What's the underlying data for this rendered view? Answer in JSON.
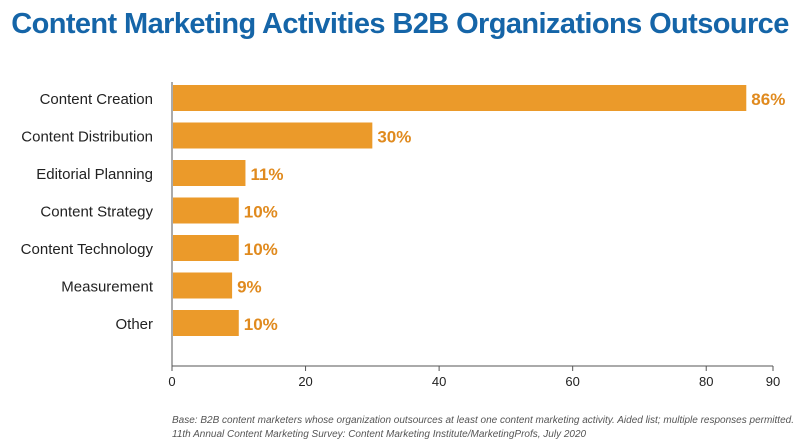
{
  "colors": {
    "title": "#1565a8",
    "bar": "#eb9a2a",
    "value_label": "#e08a1e",
    "axis": "#555555",
    "text": "#222222"
  },
  "chart_data": {
    "type": "bar",
    "orientation": "horizontal",
    "title": "Content Marketing Activities B2B Organizations Outsource",
    "categories": [
      "Content Creation",
      "Content Distribution",
      "Editorial Planning",
      "Content Strategy",
      "Content Technology",
      "Measurement",
      "Other"
    ],
    "values": [
      86,
      30,
      11,
      10,
      10,
      9,
      10
    ],
    "value_labels": [
      "86%",
      "30%",
      "11%",
      "10%",
      "10%",
      "9%",
      "10%"
    ],
    "xlim": [
      0,
      90
    ],
    "xticks": [
      0,
      20,
      40,
      60,
      80,
      90
    ],
    "xtick_labels": [
      "0",
      "20",
      "40",
      "60",
      "80",
      "90"
    ],
    "xlabel": "",
    "ylabel": "",
    "grid": false,
    "legend": "none"
  },
  "footnotes": {
    "base": "Base: B2B content marketers whose organization outsources at least one content marketing activity. Aided list; multiple responses permitted.",
    "source": "11th Annual Content Marketing Survey: Content Marketing Institute/MarketingProfs, July 2020"
  }
}
